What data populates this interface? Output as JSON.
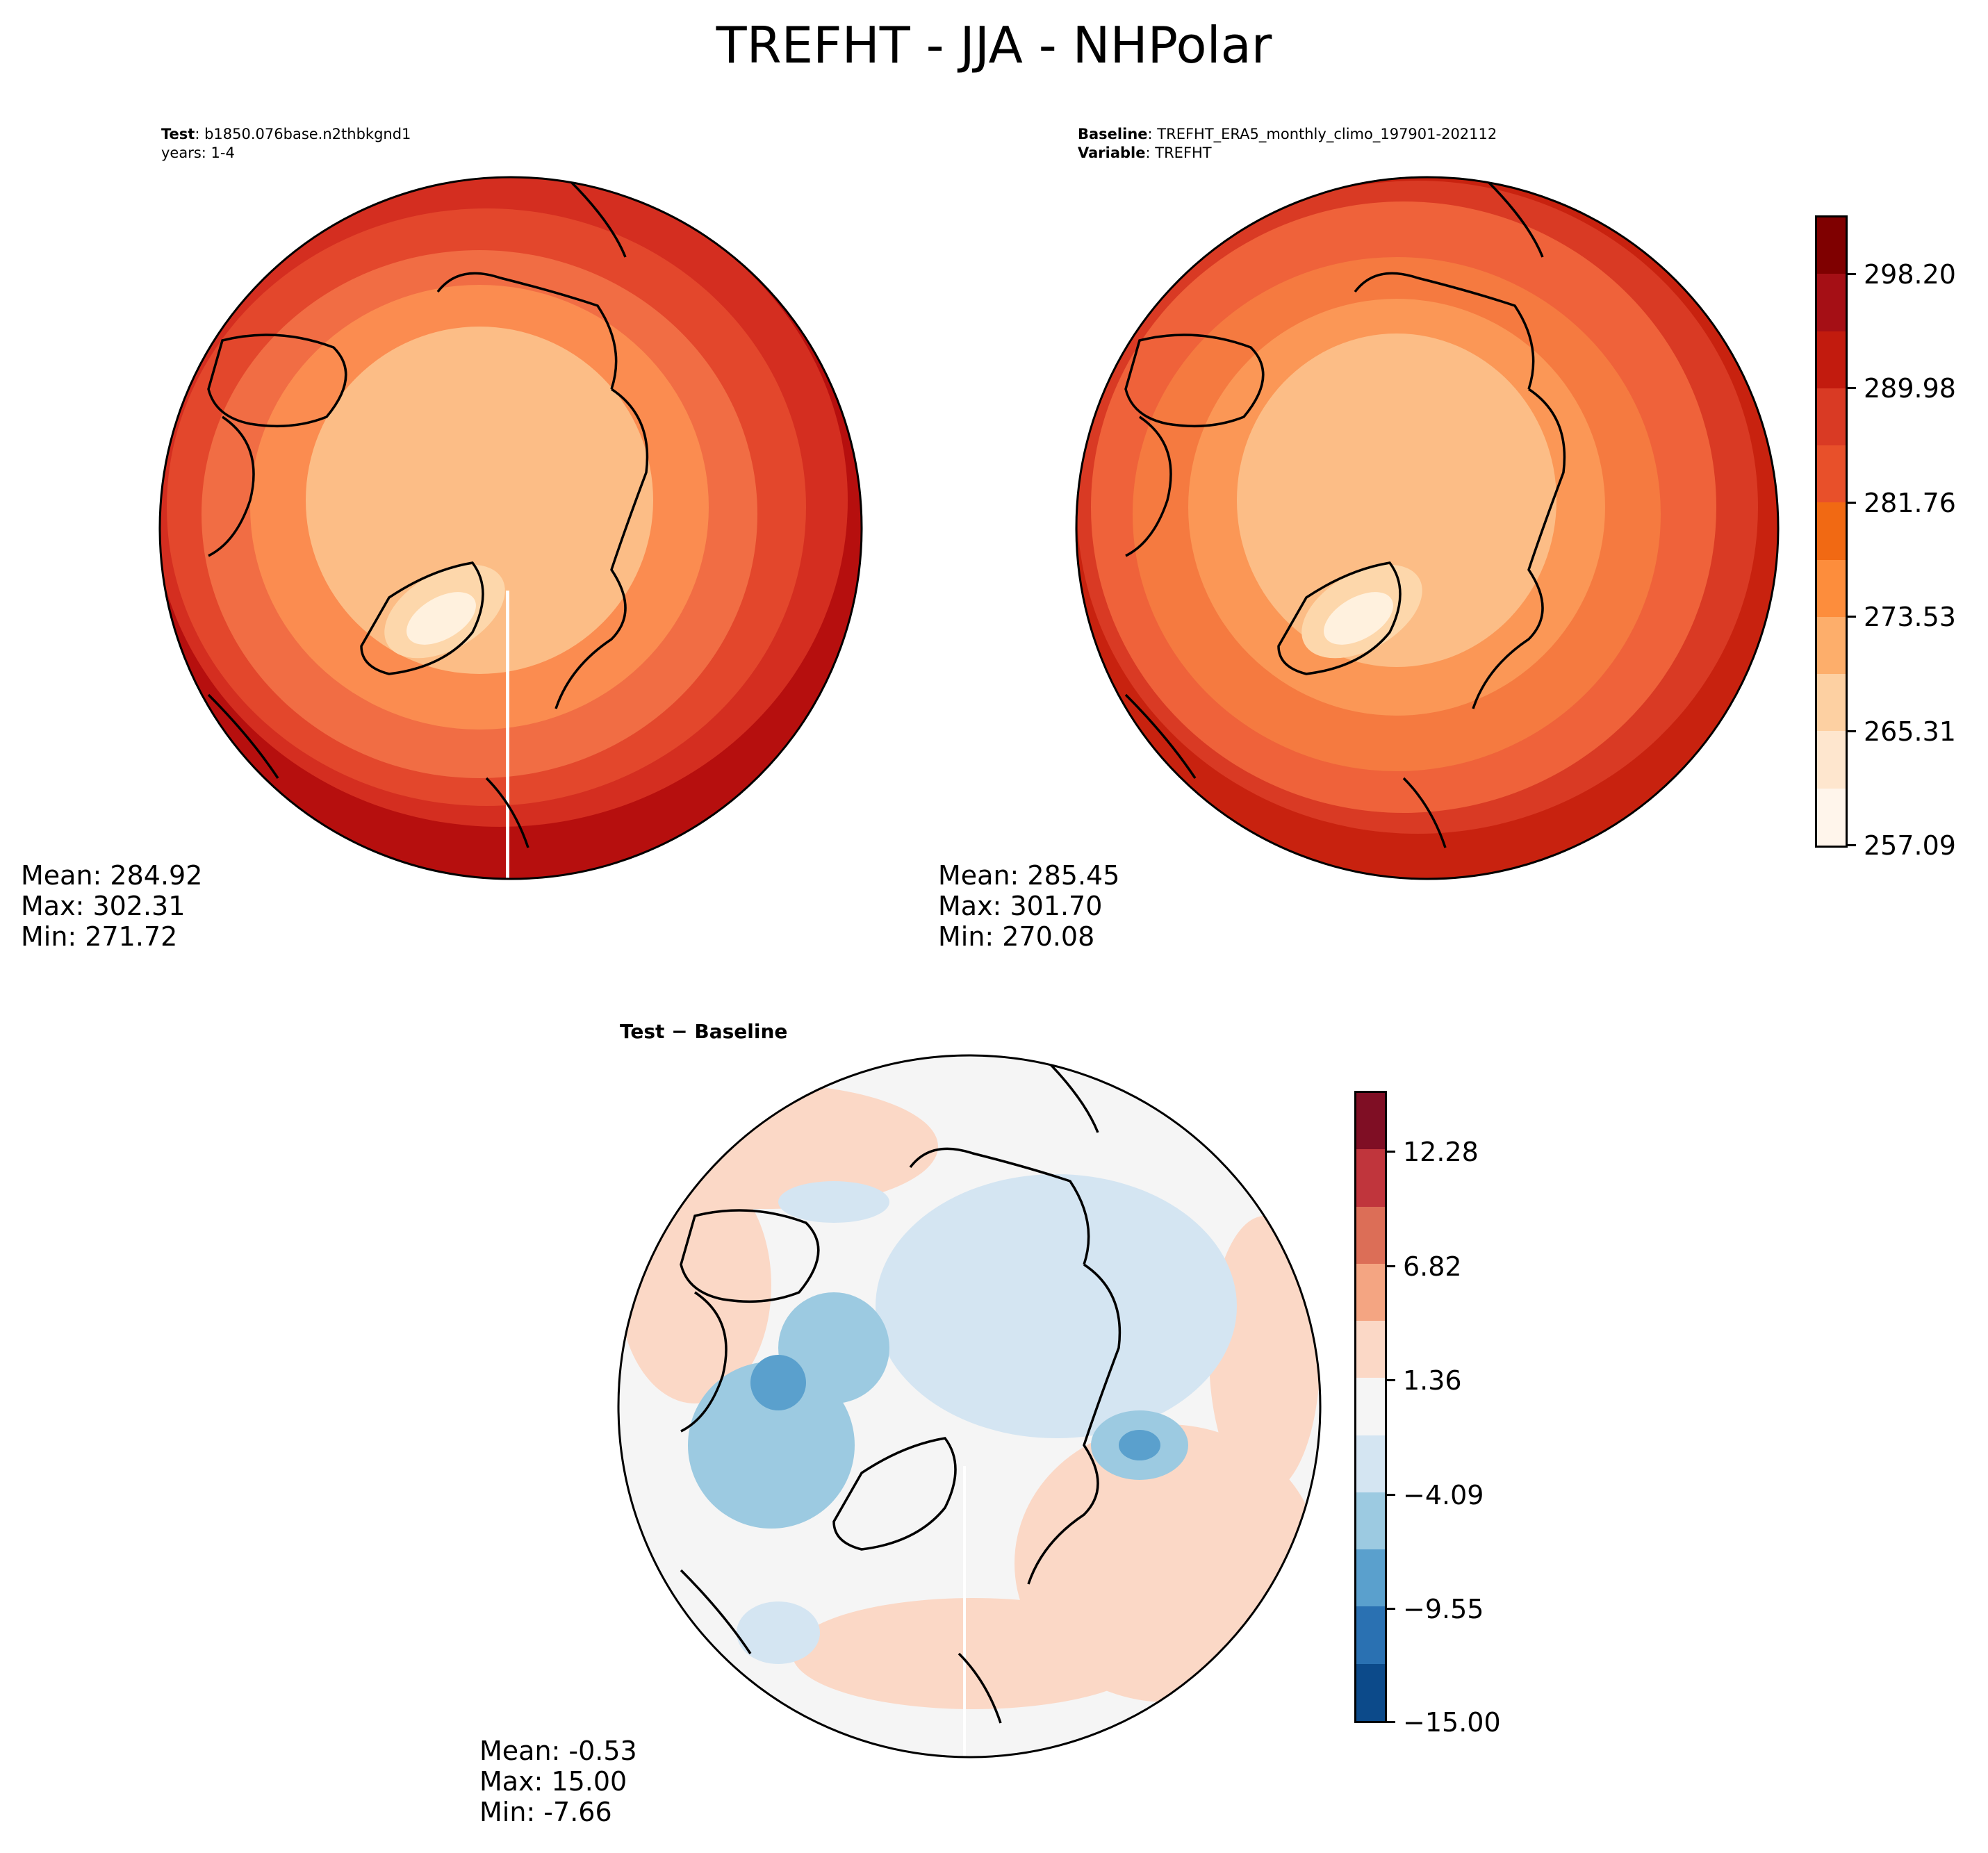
{
  "title": "TREFHT - JJA - NHPolar",
  "panels": {
    "test": {
      "label_bold": "Test",
      "label_value": "b1850.076base.n2thbkgnd1",
      "line2": "years: 1-4",
      "mean": "Mean: 284.92",
      "max": "Max: 302.31",
      "min": "Min: 271.72"
    },
    "baseline": {
      "label_bold": "Baseline",
      "label_value": "TREFHT_ERA5_monthly_climo_197901-202112",
      "line2_bold": "Variable",
      "line2_value": "TREFHT",
      "mean": "Mean: 285.45",
      "max": "Max: 301.70",
      "min": "Min: 270.08"
    },
    "diff": {
      "title": "Test − Baseline",
      "mean": "Mean: -0.53",
      "max": "Max: 15.00",
      "min": "Min: -7.66"
    }
  },
  "colorbars": {
    "abs": {
      "colormap": "Reds",
      "colors": [
        "#fff5eb",
        "#fee6ce",
        "#fdd0a2",
        "#fdae6b",
        "#fd8d3c",
        "#f16913",
        "#e8502a",
        "#d93a24",
        "#c21b0e",
        "#a50f15",
        "#7f0000"
      ],
      "ticks": [
        "298.20",
        "289.98",
        "281.76",
        "273.53",
        "265.31",
        "257.09"
      ],
      "range": [
        257.09,
        302.31
      ]
    },
    "diff": {
      "colormap": "RdBu_r",
      "colors": [
        "#0c4a8a",
        "#2a71b2",
        "#5aa0cd",
        "#9ccae1",
        "#d4e5f2",
        "#f5f5f5",
        "#fbd8c6",
        "#f4a582",
        "#dc6e57",
        "#c0353c",
        "#7f0e24"
      ],
      "ticks": [
        "12.28",
        "6.82",
        "1.36",
        "−4.09",
        "−9.55",
        "−15.00"
      ],
      "range": [
        -15.0,
        15.0
      ]
    }
  },
  "chart_data": {
    "type": "heatmap",
    "projection": "north polar stereographic",
    "variable": "TREFHT",
    "season": "JJA",
    "region": "NHPolar",
    "maps": [
      {
        "panel": "Test",
        "mean": 284.92,
        "max": 302.31,
        "min": 271.72
      },
      {
        "panel": "Baseline",
        "mean": 285.45,
        "max": 301.7,
        "min": 270.08
      },
      {
        "panel": "Test − Baseline",
        "mean": -0.53,
        "max": 15.0,
        "min": -7.66
      }
    ]
  }
}
